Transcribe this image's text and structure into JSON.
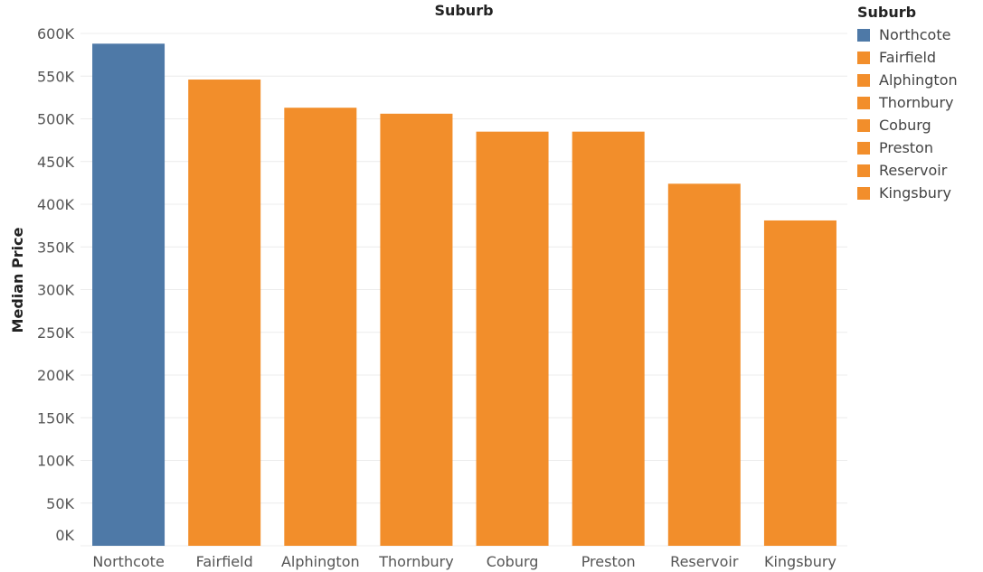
{
  "chart_data": {
    "type": "bar",
    "title": "Suburb",
    "xlabel": "",
    "ylabel": "Median Price",
    "categories": [
      "Northcote",
      "Fairfield",
      "Alphington",
      "Thornbury",
      "Coburg",
      "Preston",
      "Reservoir",
      "Kingsbury"
    ],
    "values": [
      588000,
      546000,
      513000,
      506000,
      485000,
      485000,
      424000,
      381000
    ],
    "colors": [
      "#4e79a7",
      "#f28e2b",
      "#f28e2b",
      "#f28e2b",
      "#f28e2b",
      "#f28e2b",
      "#f28e2b",
      "#f28e2b"
    ],
    "ylim": [
      0,
      600000
    ],
    "yticks": [
      0,
      50000,
      100000,
      150000,
      200000,
      250000,
      300000,
      350000,
      400000,
      450000,
      500000,
      550000,
      600000
    ],
    "ytick_labels": [
      "0K",
      "50K",
      "100K",
      "150K",
      "200K",
      "250K",
      "300K",
      "350K",
      "400K",
      "450K",
      "500K",
      "550K",
      "600K"
    ],
    "grid": true,
    "legend": {
      "title": "Suburb",
      "placement": "right",
      "entries": [
        {
          "label": "Northcote",
          "color": "#4e79a7"
        },
        {
          "label": "Fairfield",
          "color": "#f28e2b"
        },
        {
          "label": "Alphington",
          "color": "#f28e2b"
        },
        {
          "label": "Thornbury",
          "color": "#f28e2b"
        },
        {
          "label": "Coburg",
          "color": "#f28e2b"
        },
        {
          "label": "Preston",
          "color": "#f28e2b"
        },
        {
          "label": "Reservoir",
          "color": "#f28e2b"
        },
        {
          "label": "Kingsbury",
          "color": "#f28e2b"
        }
      ]
    }
  }
}
